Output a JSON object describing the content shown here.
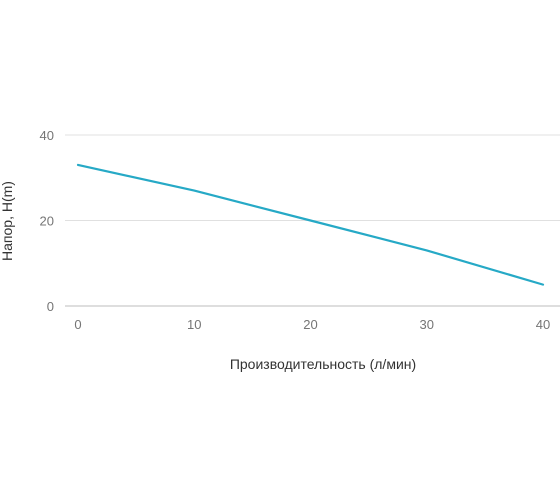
{
  "chart_data": {
    "type": "line",
    "title": "",
    "xlabel": "Производительность (л/мин)",
    "ylabel": "Напор, Н(m)",
    "x": [
      0,
      10,
      20,
      30,
      40
    ],
    "series": [
      {
        "values": [
          33,
          27,
          20,
          13,
          5
        ]
      }
    ],
    "xlim": [
      0,
      40
    ],
    "ylim": [
      0,
      40
    ],
    "x_ticks": [
      "0",
      "10",
      "20",
      "30",
      "40"
    ],
    "y_ticks": [
      "0",
      "20",
      "40"
    ],
    "grid": "horizontal",
    "legend": "none",
    "colors": {
      "line": "#26a9c6",
      "grid": "#e0e0e0",
      "baseline": "#bdbdbd"
    }
  }
}
